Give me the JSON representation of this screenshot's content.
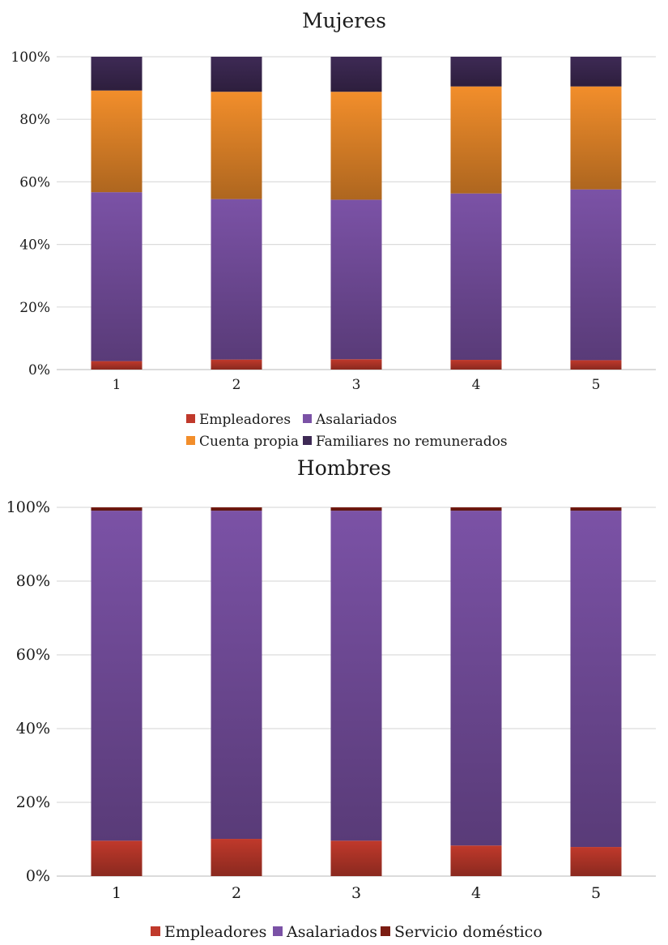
{
  "chart_data": [
    {
      "type": "bar",
      "stacked": true,
      "title": "Mujeres",
      "categories": [
        "1",
        "2",
        "3",
        "4",
        "5"
      ],
      "ylim": [
        0,
        100
      ],
      "yticks": [
        "0%",
        "20%",
        "40%",
        "60%",
        "80%",
        "100%"
      ],
      "grid": true,
      "legend_position": "bottom",
      "series": [
        {
          "name": "Empleadores",
          "color": "#c0392b",
          "values": [
            2.7,
            3.2,
            3.3,
            3.1,
            3.0
          ]
        },
        {
          "name": "Asalariados",
          "color": "#7b52a6",
          "values": [
            54.0,
            51.3,
            51.0,
            53.2,
            54.6
          ]
        },
        {
          "name": "Cuenta propia",
          "color": "#f28e2b",
          "values": [
            32.5,
            34.3,
            34.5,
            34.2,
            32.9
          ]
        },
        {
          "name": "Familiares no remunerados",
          "color": "#3e2a55",
          "values": [
            10.8,
            11.2,
            11.2,
            9.5,
            9.5
          ]
        }
      ]
    },
    {
      "type": "bar",
      "stacked": true,
      "title": "Hombres",
      "categories": [
        "1",
        "2",
        "3",
        "4",
        "5"
      ],
      "ylim": [
        0,
        100
      ],
      "yticks": [
        "0%",
        "20%",
        "40%",
        "60%",
        "80%",
        "100%"
      ],
      "grid": true,
      "legend_position": "bottom",
      "series": [
        {
          "name": "Empleadores",
          "color": "#c0392b",
          "values": [
            9.6,
            10.1,
            9.6,
            8.3,
            7.9
          ]
        },
        {
          "name": "Asalariados",
          "color": "#7b52a6",
          "values": [
            89.5,
            89.0,
            89.5,
            90.8,
            91.2
          ]
        },
        {
          "name": "Servicio doméstico",
          "color": "#7b1c12",
          "values": [
            0.9,
            0.9,
            0.9,
            0.9,
            0.9
          ]
        }
      ]
    }
  ]
}
